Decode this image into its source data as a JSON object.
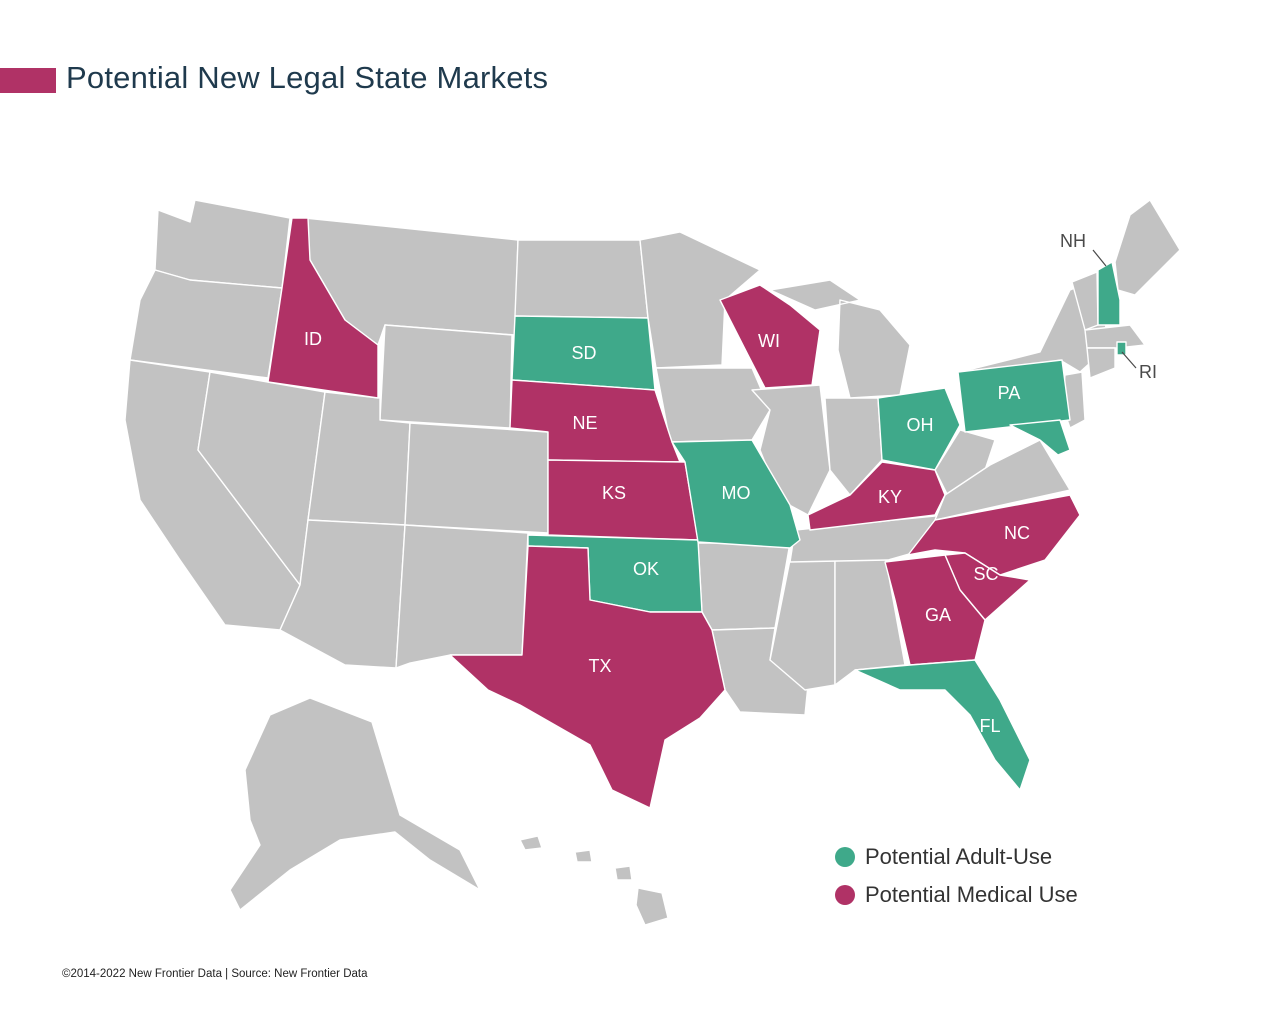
{
  "title": "Potential New Legal State Markets",
  "colors": {
    "adult_use": "#3fa98a",
    "medical": "#b03266",
    "other": "#c2c2c2",
    "title_text": "#1f3a4d"
  },
  "legend": {
    "adult_use_label": "Potential Adult-Use",
    "medical_label": "Potential Medical Use"
  },
  "footer": "©2014-2022  New Frontier Data | Source: New Frontier Data",
  "states": [
    {
      "abbr": "ID",
      "category": "medical"
    },
    {
      "abbr": "SD",
      "category": "adult_use"
    },
    {
      "abbr": "NE",
      "category": "medical"
    },
    {
      "abbr": "KS",
      "category": "medical"
    },
    {
      "abbr": "OK",
      "category": "adult_use"
    },
    {
      "abbr": "TX",
      "category": "medical"
    },
    {
      "abbr": "MO",
      "category": "adult_use"
    },
    {
      "abbr": "WI",
      "category": "medical"
    },
    {
      "abbr": "OH",
      "category": "adult_use"
    },
    {
      "abbr": "PA",
      "category": "adult_use"
    },
    {
      "abbr": "KY",
      "category": "medical"
    },
    {
      "abbr": "NC",
      "category": "medical"
    },
    {
      "abbr": "SC",
      "category": "medical"
    },
    {
      "abbr": "GA",
      "category": "medical"
    },
    {
      "abbr": "FL",
      "category": "adult_use"
    },
    {
      "abbr": "NH",
      "category": "adult_use"
    },
    {
      "abbr": "RI",
      "category": "adult_use"
    }
  ]
}
